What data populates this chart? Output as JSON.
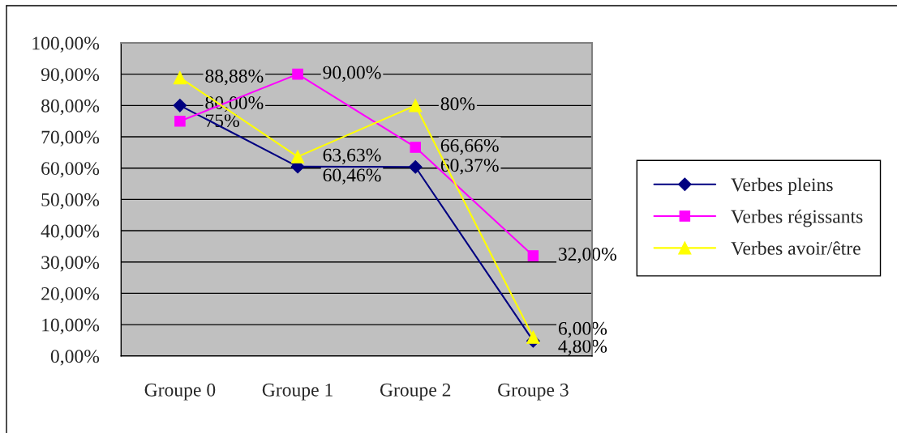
{
  "chart_data": {
    "type": "line",
    "categories": [
      "Groupe 0",
      "Groupe 1",
      "Groupe 2",
      "Groupe 3"
    ],
    "series": [
      {
        "name": "Verbes pleins",
        "color": "#000080",
        "marker": "diamond",
        "values": [
          80.0,
          60.46,
          60.37,
          4.8
        ],
        "value_labels": [
          "80,00%",
          "60,46%",
          "60,37%",
          "4,80%"
        ]
      },
      {
        "name": "Verbes régissants",
        "color": "#ff00ff",
        "marker": "square",
        "values": [
          75,
          90.0,
          66.66,
          32.0
        ],
        "value_labels": [
          "75%",
          "90,00%",
          "66,66%",
          "32,00%"
        ]
      },
      {
        "name": "Verbes avoir/être",
        "color": "#ffff00",
        "marker": "triangle",
        "values": [
          88.88,
          63.63,
          80,
          6.0
        ],
        "value_labels": [
          "88,88%",
          "63,63%",
          "80%",
          "6,00%"
        ]
      }
    ],
    "ylim": [
      0,
      100
    ],
    "yticks": [
      {
        "value": 0,
        "label": "0,00%"
      },
      {
        "value": 10,
        "label": "10,00%"
      },
      {
        "value": 20,
        "label": "20,00%"
      },
      {
        "value": 30,
        "label": "30,00%"
      },
      {
        "value": 40,
        "label": "40,00%"
      },
      {
        "value": 50,
        "label": "50,00%"
      },
      {
        "value": 60,
        "label": "60,00%"
      },
      {
        "value": 70,
        "label": "70,00%"
      },
      {
        "value": 80,
        "label": "80,00%"
      },
      {
        "value": 90,
        "label": "90,00%"
      },
      {
        "value": 100,
        "label": "100,00%"
      }
    ],
    "grid": "y",
    "legend": "right",
    "line_style": "solid"
  }
}
